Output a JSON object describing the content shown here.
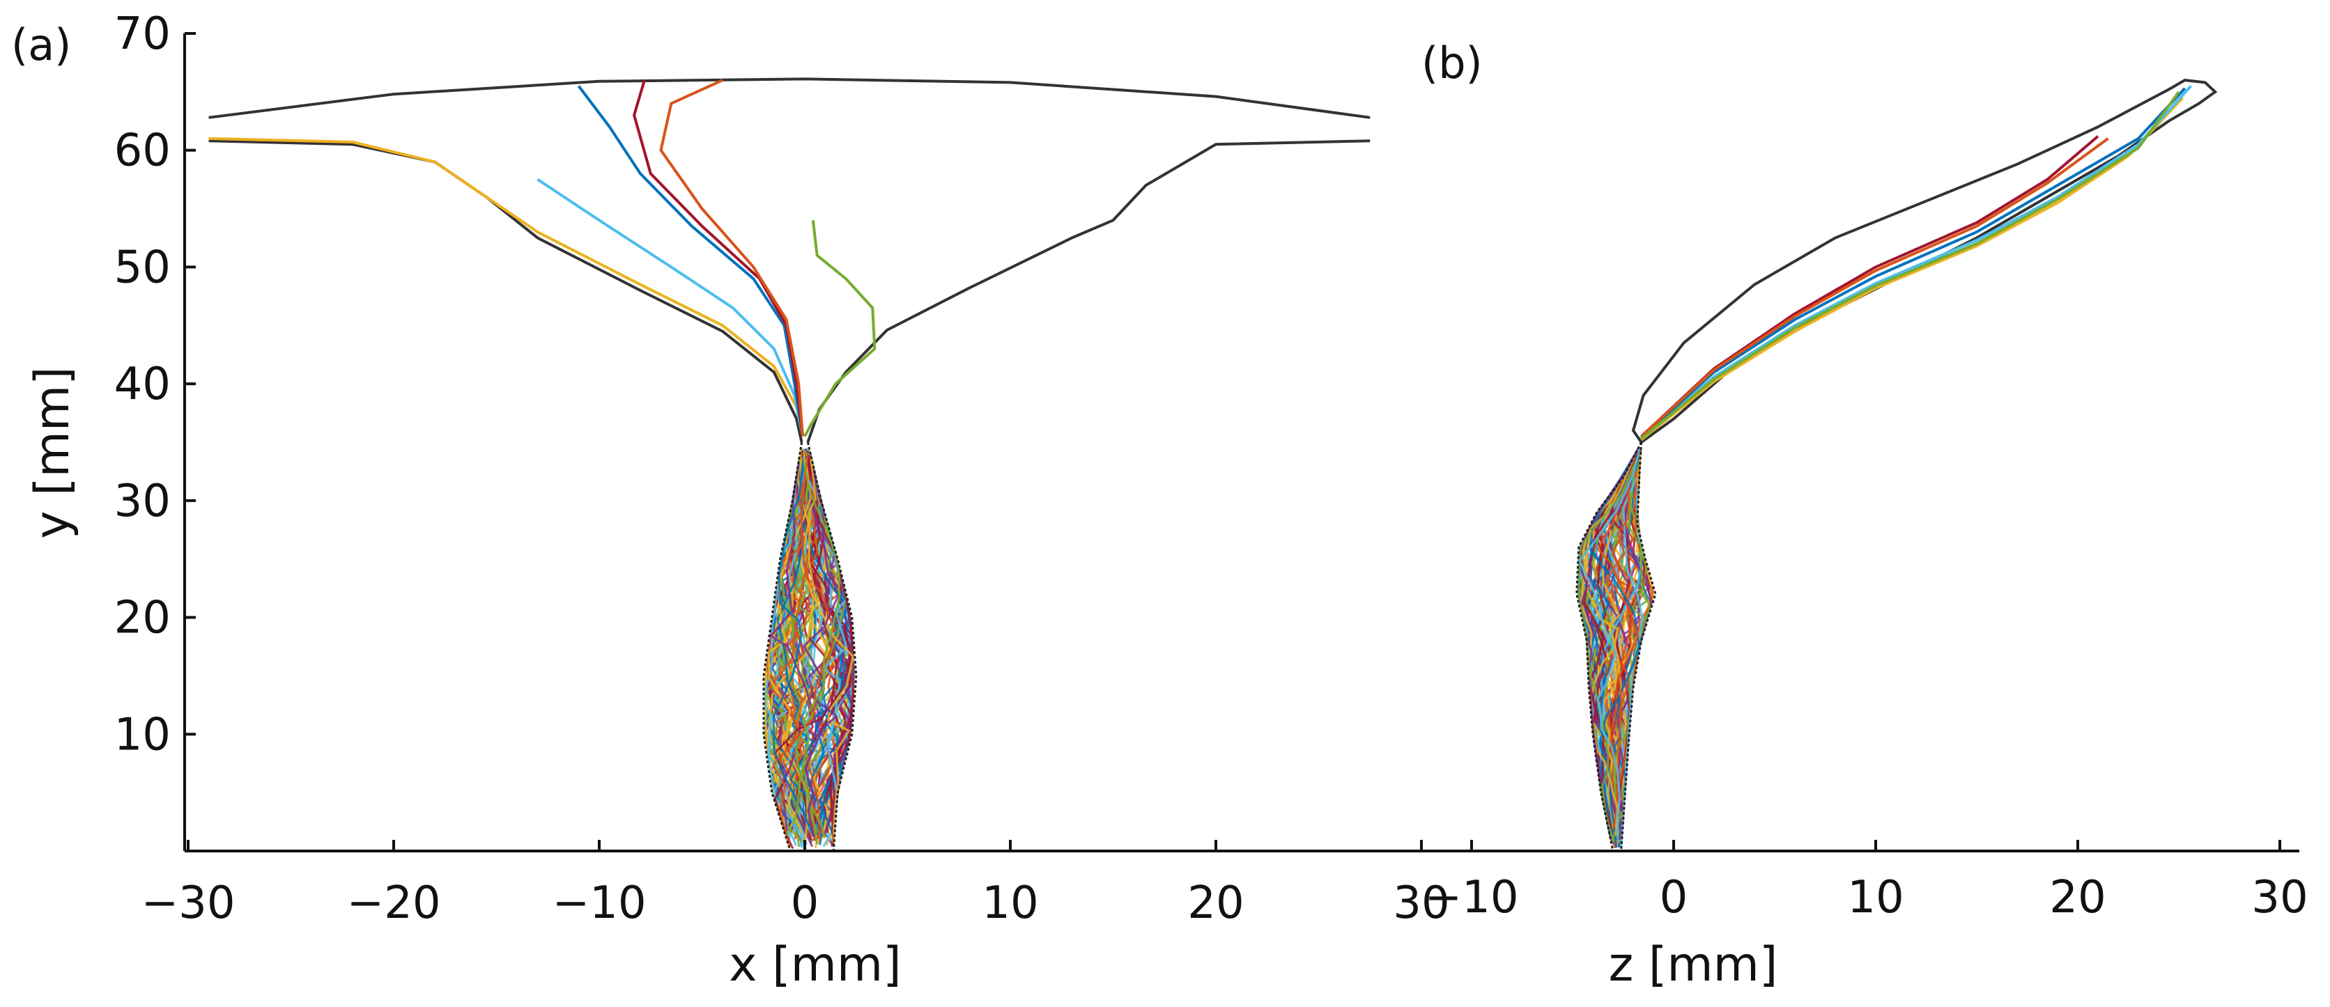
{
  "chart_data": [
    {
      "type": "line",
      "panel_label": "(a)",
      "xlabel": "x [mm]",
      "ylabel": "y [mm]",
      "xlim": [
        -30,
        30
      ],
      "ylim": [
        0,
        70
      ],
      "xticks": [
        -30,
        -20,
        -10,
        0,
        10,
        20,
        30
      ],
      "yticks": [
        10,
        20,
        30,
        40,
        50,
        60,
        70
      ],
      "xtick_labels": [
        "−30",
        "−20",
        "−10",
        "0",
        "10",
        "20",
        "30"
      ],
      "ytick_labels": [
        "10",
        "20",
        "30",
        "40",
        "50",
        "60",
        "70"
      ],
      "geometry_outline": {
        "upper_edge": [
          [
            -29,
            62.8
          ],
          [
            -20,
            64.8
          ],
          [
            -10,
            65.9
          ],
          [
            0,
            66.1
          ],
          [
            10,
            65.8
          ],
          [
            20,
            64.6
          ],
          [
            27.5,
            62.8
          ]
        ],
        "left_wall": [
          [
            -29,
            60.8
          ],
          [
            -22,
            60.5
          ],
          [
            -18,
            59.0
          ],
          [
            -15.5,
            56.0
          ],
          [
            -13,
            52.5
          ],
          [
            -8,
            48.0
          ],
          [
            -4,
            44.5
          ],
          [
            -1.5,
            41.0
          ],
          [
            -0.4,
            37.0
          ],
          [
            -0.15,
            35.0
          ]
        ],
        "right_wall": [
          [
            27.5,
            60.8
          ],
          [
            20,
            60.5
          ],
          [
            16.6,
            57.0
          ],
          [
            15,
            54.0
          ],
          [
            13,
            52.5
          ],
          [
            8,
            48.2
          ],
          [
            4,
            44.6
          ],
          [
            2.0,
            41.0
          ],
          [
            0.7,
            37.8
          ],
          [
            0.15,
            35.0
          ]
        ],
        "stem_left": [
          [
            -0.15,
            35.0
          ],
          [
            -0.6,
            30.0
          ],
          [
            -1.2,
            25.0
          ],
          [
            -1.6,
            20.0
          ],
          [
            -2.0,
            15.0
          ],
          [
            -2.0,
            10.0
          ],
          [
            -1.6,
            5.0
          ],
          [
            -0.7,
            0.0
          ]
        ],
        "stem_right": [
          [
            0.15,
            35.0
          ],
          [
            0.8,
            30.0
          ],
          [
            1.6,
            25.0
          ],
          [
            2.3,
            20.0
          ],
          [
            2.5,
            15.0
          ],
          [
            2.3,
            10.0
          ],
          [
            1.6,
            5.0
          ],
          [
            1.4,
            0.0
          ]
        ]
      },
      "series": [
        {
          "name": "orange",
          "color": "#EDB120",
          "points": [
            [
              -29,
              61.0
            ],
            [
              -22,
              60.7
            ],
            [
              -18,
              59.0
            ],
            [
              -15.5,
              56.0
            ],
            [
              -13,
              53.0
            ],
            [
              -8,
              48.5
            ],
            [
              -4,
              45.0
            ],
            [
              -1.5,
              41.5
            ],
            [
              -0.4,
              38.0
            ],
            [
              -0.1,
              35.5
            ]
          ]
        },
        {
          "name": "cyan",
          "color": "#4DBEEE",
          "points": [
            [
              -13,
              57.5
            ],
            [
              -10,
              54.0
            ],
            [
              -6.5,
              50.0
            ],
            [
              -3.5,
              46.5
            ],
            [
              -1.5,
              43.0
            ],
            [
              -0.5,
              39.0
            ],
            [
              -0.1,
              35.5
            ]
          ]
        },
        {
          "name": "blue",
          "color": "#0072BD",
          "points": [
            [
              -11,
              65.5
            ],
            [
              -9.5,
              62.0
            ],
            [
              -8,
              58.0
            ],
            [
              -5.5,
              53.5
            ],
            [
              -2.5,
              49.0
            ],
            [
              -1.0,
              45.0
            ],
            [
              -0.5,
              40.0
            ],
            [
              -0.1,
              35.5
            ]
          ]
        },
        {
          "name": "purple",
          "color": "#A2142F",
          "points": [
            [
              -7.8,
              66.0
            ],
            [
              -8.3,
              63.0
            ],
            [
              -7.5,
              58.0
            ],
            [
              -5.0,
              53.5
            ],
            [
              -2.2,
              49.0
            ],
            [
              -0.9,
              45.0
            ],
            [
              -0.4,
              40.0
            ],
            [
              -0.1,
              35.5
            ]
          ]
        },
        {
          "name": "red-orange",
          "color": "#D95319",
          "points": [
            [
              -4.0,
              66.0
            ],
            [
              -6.5,
              64.0
            ],
            [
              -7.0,
              60.0
            ],
            [
              -5.0,
              55.0
            ],
            [
              -2.5,
              50.0
            ],
            [
              -0.9,
              45.5
            ],
            [
              -0.3,
              40.0
            ],
            [
              -0.1,
              35.5
            ]
          ]
        },
        {
          "name": "green",
          "color": "#77AC30",
          "points": [
            [
              0.4,
              54.0
            ],
            [
              0.6,
              51.0
            ],
            [
              2.0,
              49.0
            ],
            [
              3.3,
              46.5
            ],
            [
              3.4,
              43.0
            ],
            [
              1.5,
              40.0
            ],
            [
              0.3,
              36.5
            ],
            [
              0.0,
              35.5
            ]
          ]
        }
      ]
    },
    {
      "type": "line",
      "panel_label": "(b)",
      "xlabel": "z [mm]",
      "ylabel": "",
      "xlim": [
        -10,
        30
      ],
      "ylim": [
        0,
        70
      ],
      "xticks": [
        -10,
        0,
        10,
        20,
        30
      ],
      "xtick_labels": [
        "−10",
        "0",
        "10",
        "20",
        "30"
      ],
      "geometry_outline": {
        "outer": [
          [
            -1.6,
            35.0
          ],
          [
            0,
            37.0
          ],
          [
            3,
            41.5
          ],
          [
            7,
            45.5
          ],
          [
            11,
            49.0
          ],
          [
            15,
            52.5
          ],
          [
            19,
            56.5
          ],
          [
            22,
            59.5
          ],
          [
            24.5,
            62.5
          ],
          [
            26,
            64.0
          ],
          [
            26.8,
            65.0
          ],
          [
            26.3,
            65.8
          ],
          [
            25.3,
            66.0
          ],
          [
            24.5,
            65.2
          ],
          [
            21,
            62.0
          ],
          [
            17,
            58.8
          ],
          [
            13,
            56.0
          ],
          [
            8,
            52.5
          ],
          [
            4,
            48.5
          ],
          [
            0.5,
            43.5
          ],
          [
            -1.5,
            39.0
          ],
          [
            -2.0,
            36.0
          ],
          [
            -1.6,
            35.0
          ]
        ]
      },
      "bundle_outline_left": [
        [
          -1.6,
          35.0
        ],
        [
          -2.5,
          32.0
        ],
        [
          -3.8,
          29.0
        ],
        [
          -4.7,
          26.0
        ],
        [
          -4.8,
          22.0
        ],
        [
          -4.3,
          18.0
        ],
        [
          -4.2,
          14.0
        ],
        [
          -4.0,
          10.0
        ],
        [
          -3.6,
          5.0
        ],
        [
          -3.0,
          0.0
        ]
      ],
      "bundle_outline_right": [
        [
          -1.6,
          35.0
        ],
        [
          -1.7,
          32.0
        ],
        [
          -1.8,
          28.0
        ],
        [
          -1.4,
          25.0
        ],
        [
          -0.9,
          22.0
        ],
        [
          -1.6,
          18.0
        ],
        [
          -2.0,
          14.0
        ],
        [
          -2.2,
          10.0
        ],
        [
          -2.4,
          5.0
        ],
        [
          -2.6,
          0.0
        ]
      ],
      "series": [
        {
          "name": "orange",
          "color": "#EDB120",
          "points": [
            [
              -1.6,
              35.2
            ],
            [
              2,
              40.2
            ],
            [
              6,
              44.5
            ],
            [
              10,
              48.2
            ],
            [
              15,
              51.8
            ],
            [
              19,
              55.5
            ],
            [
              22.5,
              59.5
            ],
            [
              25.2,
              64.5
            ]
          ]
        },
        {
          "name": "cyan",
          "color": "#4DBEEE",
          "points": [
            [
              -1.6,
              35.3
            ],
            [
              2,
              40.6
            ],
            [
              6,
              45.0
            ],
            [
              10,
              48.6
            ],
            [
              15,
              52.3
            ],
            [
              19,
              56.0
            ],
            [
              23,
              60.5
            ],
            [
              25.6,
              65.5
            ]
          ]
        },
        {
          "name": "blue",
          "color": "#0072BD",
          "points": [
            [
              -1.6,
              35.4
            ],
            [
              2,
              41.0
            ],
            [
              6,
              45.5
            ],
            [
              10,
              49.2
            ],
            [
              15,
              53.0
            ],
            [
              19,
              57.0
            ],
            [
              23,
              61.0
            ],
            [
              25.3,
              65.3
            ]
          ]
        },
        {
          "name": "purple",
          "color": "#A2142F",
          "points": [
            [
              -1.6,
              35.5
            ],
            [
              2,
              41.3
            ],
            [
              6,
              46.0
            ],
            [
              10,
              50.0
            ],
            [
              15,
              53.8
            ],
            [
              18.5,
              57.5
            ],
            [
              21,
              61.2
            ]
          ]
        },
        {
          "name": "red-orange",
          "color": "#D95319",
          "points": [
            [
              -1.6,
              35.5
            ],
            [
              2,
              41.2
            ],
            [
              6,
              45.8
            ],
            [
              10,
              49.7
            ],
            [
              15,
              53.5
            ],
            [
              18.5,
              57.2
            ],
            [
              21.5,
              61.0
            ]
          ]
        },
        {
          "name": "green",
          "color": "#77AC30",
          "points": [
            [
              -1.6,
              35.3
            ],
            [
              2,
              40.4
            ],
            [
              6,
              44.8
            ],
            [
              10,
              48.4
            ],
            [
              15,
              52.0
            ],
            [
              19,
              55.8
            ],
            [
              23,
              60.2
            ],
            [
              25.0,
              65.0
            ]
          ]
        }
      ]
    }
  ],
  "palette": [
    "#0072BD",
    "#D95319",
    "#EDB120",
    "#7E2F8E",
    "#77AC30",
    "#4DBEEE",
    "#A2142F"
  ]
}
